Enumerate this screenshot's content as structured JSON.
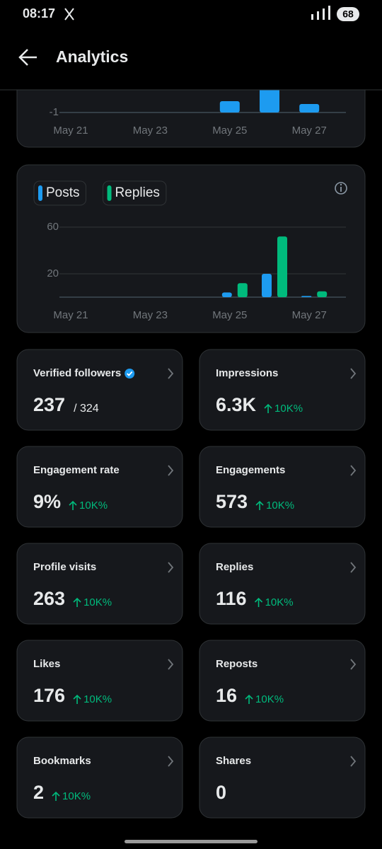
{
  "status_bar": {
    "time": "08:17",
    "battery": "68"
  },
  "header": {
    "title": "Analytics"
  },
  "chart_data": [
    {
      "type": "bar",
      "categories": [
        "May 21",
        null,
        "May 23",
        null,
        "May 25",
        null,
        "May 27"
      ],
      "series": [
        {
          "color": "#1d9bf0",
          "values": [
            -1,
            -1,
            -1,
            -1,
            -0.6,
            0.5,
            -0.7
          ]
        }
      ],
      "ylim": [
        -1,
        1
      ],
      "yticks": [
        -1
      ],
      "grid": true
    },
    {
      "type": "bar",
      "categories": [
        "May 21",
        null,
        "May 23",
        null,
        "May 25",
        null,
        "May 27"
      ],
      "series": [
        {
          "name": "Posts",
          "color": "#1d9bf0",
          "values": [
            0,
            0,
            0,
            0,
            4,
            20,
            1
          ]
        },
        {
          "name": "Replies",
          "color": "#00ba7c",
          "values": [
            0,
            0,
            0,
            0,
            12,
            52,
            5
          ]
        }
      ],
      "ylim": [
        0,
        60
      ],
      "yticks": [
        20,
        60
      ],
      "grid": true
    }
  ],
  "stats": [
    {
      "label": "Verified followers",
      "value": "237",
      "secondary": "/ 324"
    },
    {
      "label": "Impressions",
      "value": "6.3K",
      "change": "10K%"
    },
    {
      "label": "Engagement rate",
      "value": "9%",
      "change": "10K%"
    },
    {
      "label": "Engagements",
      "value": "573",
      "change": "10K%"
    },
    {
      "label": "Profile visits",
      "value": "263",
      "change": "10K%"
    },
    {
      "label": "Replies",
      "value": "116",
      "change": "10K%"
    },
    {
      "label": "Likes",
      "value": "176",
      "change": "10K%"
    },
    {
      "label": "Reposts",
      "value": "16",
      "change": "10K%"
    },
    {
      "label": "Bookmarks",
      "value": "2",
      "change": "10K%"
    },
    {
      "label": "Shares",
      "value": "0"
    }
  ]
}
